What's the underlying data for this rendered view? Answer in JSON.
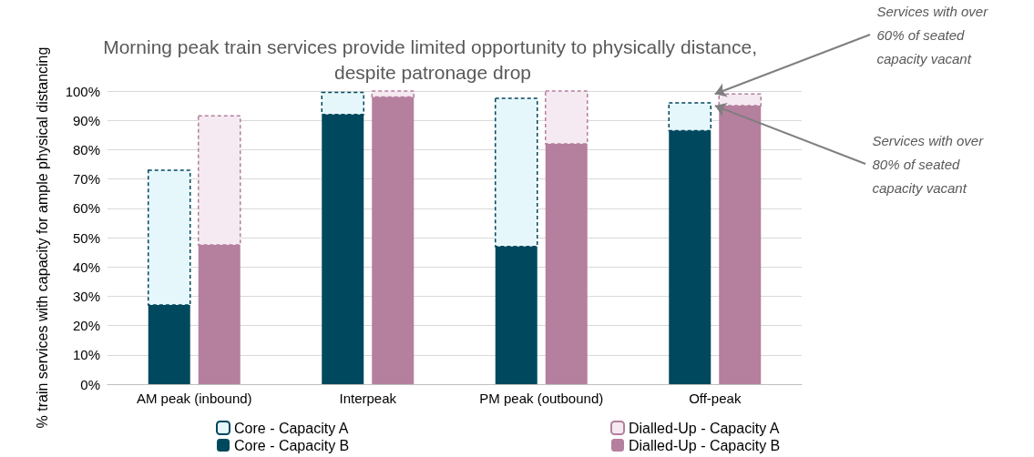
{
  "chart_data": {
    "type": "bar",
    "title": "Morning peak train services provide limited opportunity to physically distance, despite patronage drop",
    "ylabel": "% train services with capacity for ample physical distancing",
    "categories": [
      "AM peak (inbound)",
      "Interpeak",
      "PM peak (outbound)",
      "Off-peak"
    ],
    "series": [
      {
        "name": "Core - Capacity A",
        "color": "#e6f7fb",
        "base": [
          27,
          92,
          47,
          86.5
        ],
        "values": [
          46,
          7.5,
          50.5,
          9.5
        ]
      },
      {
        "name": "Dialled-Up - Capacity A",
        "color": "#f5eaf1",
        "base": [
          47.5,
          98,
          82,
          95
        ],
        "values": [
          44,
          2,
          18,
          4
        ]
      },
      {
        "name": "Core - Capacity B",
        "color": "#00485e",
        "values": [
          27,
          92,
          47,
          86.5
        ]
      },
      {
        "name": "Dialled-Up - Capacity B",
        "color": "#b57f9e",
        "values": [
          47.5,
          98,
          82,
          95
        ]
      }
    ],
    "ylim": [
      0,
      100
    ],
    "yticks": [
      {
        "value": 0,
        "label": "0%"
      },
      {
        "value": 10,
        "label": "10%"
      },
      {
        "value": 20,
        "label": "20%"
      },
      {
        "value": 30,
        "label": "30%"
      },
      {
        "value": 40,
        "label": "40%"
      },
      {
        "value": 50,
        "label": "50%"
      },
      {
        "value": 60,
        "label": "60%"
      },
      {
        "value": 70,
        "label": "70%"
      },
      {
        "value": 80,
        "label": "80%"
      },
      {
        "value": 90,
        "label": "90%"
      },
      {
        "value": 100,
        "label": "100%"
      }
    ],
    "grid": "y",
    "legend": "bottom",
    "annotations": [
      {
        "text": "Services with over 60% of seated capacity vacant",
        "x": "Off-peak",
        "y": 99
      },
      {
        "text": "Services with over 80% of seated capacity vacant",
        "x": "Off-peak",
        "y": 95
      }
    ]
  }
}
